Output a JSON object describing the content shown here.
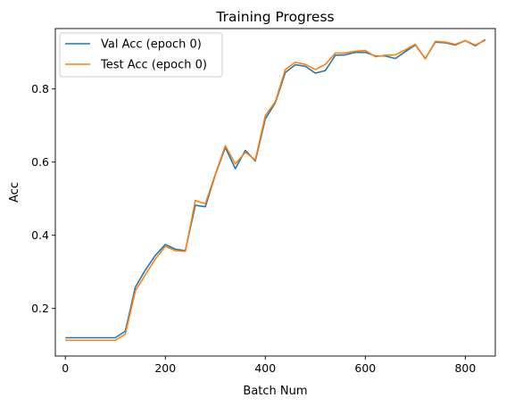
{
  "chart_data": {
    "type": "line",
    "title": "Training Progress",
    "xlabel": "Batch Num",
    "ylabel": "Acc",
    "xlim": [
      -20,
      860
    ],
    "ylim": [
      0.07,
      0.965
    ],
    "xticks": [
      0,
      200,
      400,
      600,
      800
    ],
    "yticks": [
      0.2,
      0.4,
      0.6,
      0.8
    ],
    "xtick_labels": [
      "0",
      "200",
      "400",
      "600",
      "800"
    ],
    "ytick_labels": [
      "0.2",
      "0.4",
      "0.6",
      "0.8"
    ],
    "grid": false,
    "legend_position": "upper-left",
    "series": [
      {
        "name": "Val Acc (epoch 0)",
        "color": "#1f77b4",
        "x": [
          0,
          20,
          40,
          60,
          80,
          100,
          120,
          140,
          160,
          180,
          200,
          220,
          240,
          260,
          280,
          300,
          320,
          340,
          360,
          380,
          400,
          420,
          440,
          460,
          480,
          500,
          520,
          540,
          560,
          580,
          600,
          620,
          640,
          660,
          680,
          700,
          720,
          740,
          760,
          780,
          800,
          820,
          840
        ],
        "y": [
          0.12,
          0.12,
          0.12,
          0.12,
          0.12,
          0.12,
          0.138,
          0.258,
          0.305,
          0.345,
          0.375,
          0.362,
          0.358,
          0.482,
          0.478,
          0.565,
          0.64,
          0.582,
          0.632,
          0.603,
          0.718,
          0.762,
          0.845,
          0.866,
          0.862,
          0.843,
          0.85,
          0.892,
          0.893,
          0.9,
          0.9,
          0.89,
          0.89,
          0.883,
          0.902,
          0.92,
          0.883,
          0.928,
          0.926,
          0.92,
          0.932,
          0.918,
          0.935
        ]
      },
      {
        "name": "Test Acc (epoch 0)",
        "color": "#ff7f0e",
        "x": [
          0,
          20,
          40,
          60,
          80,
          100,
          120,
          140,
          160,
          180,
          200,
          220,
          240,
          260,
          280,
          300,
          320,
          340,
          360,
          380,
          400,
          420,
          440,
          460,
          480,
          500,
          520,
          540,
          560,
          580,
          600,
          620,
          640,
          660,
          680,
          700,
          720,
          740,
          760,
          780,
          800,
          820,
          840
        ],
        "y": [
          0.113,
          0.113,
          0.113,
          0.113,
          0.113,
          0.113,
          0.13,
          0.248,
          0.292,
          0.335,
          0.37,
          0.358,
          0.356,
          0.495,
          0.486,
          0.567,
          0.645,
          0.595,
          0.627,
          0.606,
          0.727,
          0.765,
          0.853,
          0.873,
          0.867,
          0.853,
          0.867,
          0.898,
          0.898,
          0.903,
          0.905,
          0.888,
          0.892,
          0.893,
          0.907,
          0.922,
          0.882,
          0.93,
          0.928,
          0.922,
          0.932,
          0.92,
          0.933
        ]
      }
    ]
  }
}
